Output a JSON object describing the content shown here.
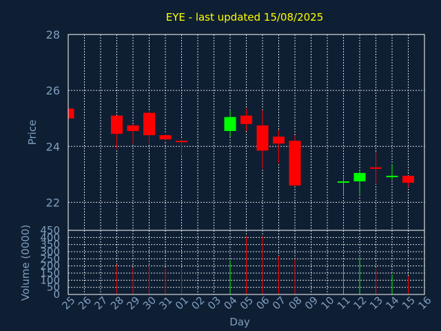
{
  "chart_data": {
    "type": "candlestick",
    "title": "EYE - last updated 15/08/2025",
    "xlabel": "Day",
    "ylabel": "Price",
    "volume_label": "Volume (0000)",
    "ylim": [
      21,
      28
    ],
    "volume_lim": [
      0,
      450
    ],
    "price_ticks": [
      "22",
      "24",
      "26",
      "28"
    ],
    "volume_ticks": [
      "0",
      "50",
      "100",
      "150",
      "200",
      "250",
      "300",
      "350",
      "400",
      "450"
    ],
    "dates": [
      "25",
      "26",
      "27",
      "28",
      "29",
      "30",
      "31",
      "01",
      "02",
      "03",
      "04",
      "05",
      "06",
      "07",
      "08",
      "09",
      "10",
      "11",
      "12",
      "13",
      "14",
      "15",
      "16"
    ],
    "candles": [
      {
        "date": "25",
        "open": 25.35,
        "high": 25.35,
        "low": 25.0,
        "close": 25.0,
        "volume": 0,
        "direction": "down"
      },
      {
        "date": "28",
        "open": 25.1,
        "high": 25.1,
        "low": 23.9,
        "close": 24.45,
        "volume": 210,
        "direction": "down"
      },
      {
        "date": "29",
        "open": 24.75,
        "high": 24.8,
        "low": 24.1,
        "close": 24.55,
        "volume": 190,
        "direction": "down"
      },
      {
        "date": "30",
        "open": 25.2,
        "high": 25.25,
        "low": 24.1,
        "close": 24.4,
        "volume": 200,
        "direction": "down"
      },
      {
        "date": "31",
        "open": 24.4,
        "high": 24.45,
        "low": 24.2,
        "close": 24.25,
        "volume": 180,
        "direction": "down"
      },
      {
        "date": "01",
        "open": 24.2,
        "high": 24.25,
        "low": 23.65,
        "close": 24.15,
        "volume": 180,
        "direction": "down"
      },
      {
        "date": "04",
        "open": 24.55,
        "high": 25.3,
        "low": 24.35,
        "close": 25.05,
        "volume": 240,
        "direction": "up"
      },
      {
        "date": "05",
        "open": 25.1,
        "high": 25.35,
        "low": 24.55,
        "close": 24.8,
        "volume": 410,
        "direction": "down"
      },
      {
        "date": "06",
        "open": 24.75,
        "high": 25.3,
        "low": 23.2,
        "close": 23.85,
        "volume": 410,
        "direction": "down"
      },
      {
        "date": "07",
        "open": 24.35,
        "high": 24.6,
        "low": 23.4,
        "close": 24.1,
        "volume": 270,
        "direction": "down"
      },
      {
        "date": "08",
        "open": 24.2,
        "high": 24.4,
        "low": 22.6,
        "close": 22.6,
        "volume": 250,
        "direction": "down"
      },
      {
        "date": "11",
        "open": 22.7,
        "high": 22.9,
        "low": 22.25,
        "close": 22.75,
        "volume": 210,
        "direction": "up"
      },
      {
        "date": "12",
        "open": 22.75,
        "high": 23.1,
        "low": 22.3,
        "close": 23.05,
        "volume": 260,
        "direction": "up"
      },
      {
        "date": "13",
        "open": 23.25,
        "high": 23.8,
        "low": 22.65,
        "close": 23.2,
        "volume": 180,
        "direction": "down"
      },
      {
        "date": "14",
        "open": 22.9,
        "high": 23.35,
        "low": 22.8,
        "close": 22.95,
        "volume": 140,
        "direction": "up"
      },
      {
        "date": "15",
        "open": 22.95,
        "high": 22.95,
        "low": 22.55,
        "close": 22.7,
        "volume": 130,
        "direction": "down"
      }
    ],
    "grid": true,
    "colors": {
      "up": "#00ff00",
      "down": "#ff0000",
      "frame": "#ffffff",
      "background": "#0f1f33",
      "title": "#ffff00",
      "labels": "#7f9fbf"
    }
  }
}
